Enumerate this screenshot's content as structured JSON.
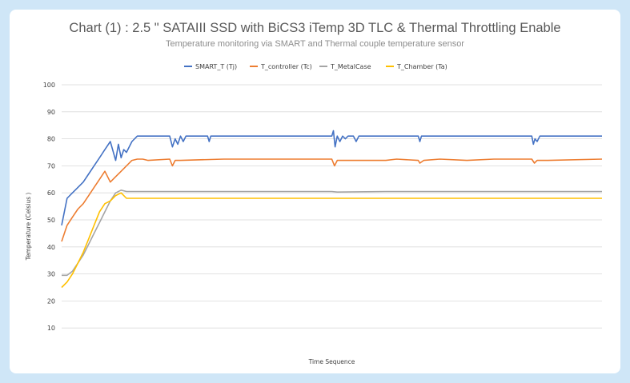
{
  "chart_data": {
    "type": "line",
    "title": "Chart (1) : 2.5 \" SATAIII SSD with BiCS3 iTemp 3D TLC & Thermal Throttling Enable",
    "subtitle": "Temperature monitoring via SMART and Thermal couple temperature sensor",
    "xlabel": "Time Sequence",
    "ylabel": "Temperature  (Celsius )",
    "ylim": [
      0,
      100
    ],
    "yticks": [
      10,
      20,
      30,
      40,
      50,
      60,
      70,
      80,
      90,
      100
    ],
    "xlim": [
      0,
      100
    ],
    "grid": true,
    "legend_position": "top-center",
    "series": [
      {
        "name": "SMART_T (Tj)",
        "color": "#4472c4",
        "x": [
          0,
          1,
          2,
          3,
          4,
          5,
          6,
          7,
          8,
          9,
          10,
          10.5,
          11,
          11.5,
          12,
          13,
          14,
          15,
          20,
          20.5,
          21,
          21.5,
          22,
          22.5,
          23,
          27,
          27.3,
          27.6,
          50,
          50.3,
          50.6,
          51,
          51.5,
          52,
          52.5,
          53,
          54,
          54.5,
          55,
          66,
          66.3,
          66.6,
          87,
          87.3,
          87.6,
          88,
          88.5,
          89,
          100
        ],
        "values": [
          48,
          58,
          60,
          62,
          64,
          67,
          70,
          73,
          76,
          79,
          72,
          78,
          73,
          76,
          75,
          79,
          81,
          81,
          81,
          77,
          80,
          78,
          81,
          79,
          81,
          81,
          79,
          81,
          81,
          83,
          77,
          81,
          79,
          81,
          80,
          81,
          81,
          79,
          81,
          81,
          79,
          81,
          81,
          78,
          80,
          79,
          81,
          81,
          81
        ]
      },
      {
        "name": "T_controller (Tc)",
        "color": "#ed7d31",
        "x": [
          0,
          1,
          2,
          3,
          4,
          5,
          6,
          7,
          8,
          9,
          10,
          11,
          12,
          13,
          14,
          15,
          16,
          20,
          20.5,
          21,
          22,
          30,
          40,
          50,
          50.5,
          51,
          52,
          60,
          62,
          66,
          66.3,
          67,
          70,
          75,
          80,
          85,
          87,
          87.5,
          88,
          90,
          100
        ],
        "values": [
          42,
          48,
          51,
          54,
          56,
          59,
          62,
          65,
          68,
          64,
          66,
          68,
          70,
          72,
          72.5,
          72.5,
          72,
          72.5,
          70,
          72,
          72,
          72.5,
          72.5,
          72.5,
          70,
          72,
          72,
          72,
          72.5,
          72,
          71,
          72,
          72.5,
          72,
          72.5,
          72.5,
          72.5,
          71,
          72,
          72,
          72.5
        ]
      },
      {
        "name": "T_MetalCase",
        "color": "#a5a5a5",
        "x": [
          0,
          1,
          2,
          3,
          4,
          5,
          6,
          7,
          8,
          9,
          10,
          11,
          12,
          12.5,
          13,
          14,
          20,
          25,
          30,
          40,
          50,
          51,
          60,
          70,
          80,
          90,
          100
        ],
        "values": [
          29.5,
          29.5,
          31,
          34,
          37,
          41,
          45,
          49,
          53,
          57,
          60,
          61,
          60.5,
          60.5,
          60.5,
          60.5,
          60.5,
          60.5,
          60.5,
          60.5,
          60.5,
          60.3,
          60.5,
          60.5,
          60.5,
          60.5,
          60.5
        ]
      },
      {
        "name": "T_Chamber (Ta)",
        "color": "#ffc000",
        "x": [
          0,
          1,
          2,
          3,
          4,
          5,
          6,
          7,
          8,
          9,
          10,
          11,
          12,
          13,
          14,
          20,
          25,
          30,
          40,
          50,
          60,
          70,
          80,
          90,
          100
        ],
        "values": [
          25,
          27,
          30,
          34,
          38,
          43,
          48,
          53,
          56,
          57,
          59,
          60,
          58,
          58,
          58,
          58,
          58,
          58,
          58,
          58,
          58,
          58,
          58,
          58,
          58
        ]
      }
    ]
  }
}
